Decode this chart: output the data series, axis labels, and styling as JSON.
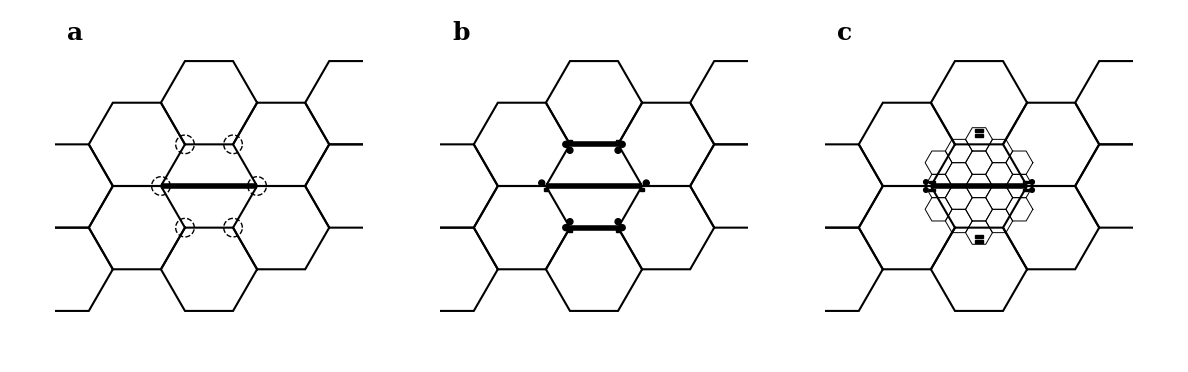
{
  "bg_color": "#ffffff",
  "hex_linewidth": 1.5,
  "thick_linewidth": 4.0,
  "figsize": [
    11.88,
    3.72
  ],
  "dpi": 100,
  "R": 0.145,
  "panel_labels": [
    "a",
    "b",
    "c"
  ]
}
